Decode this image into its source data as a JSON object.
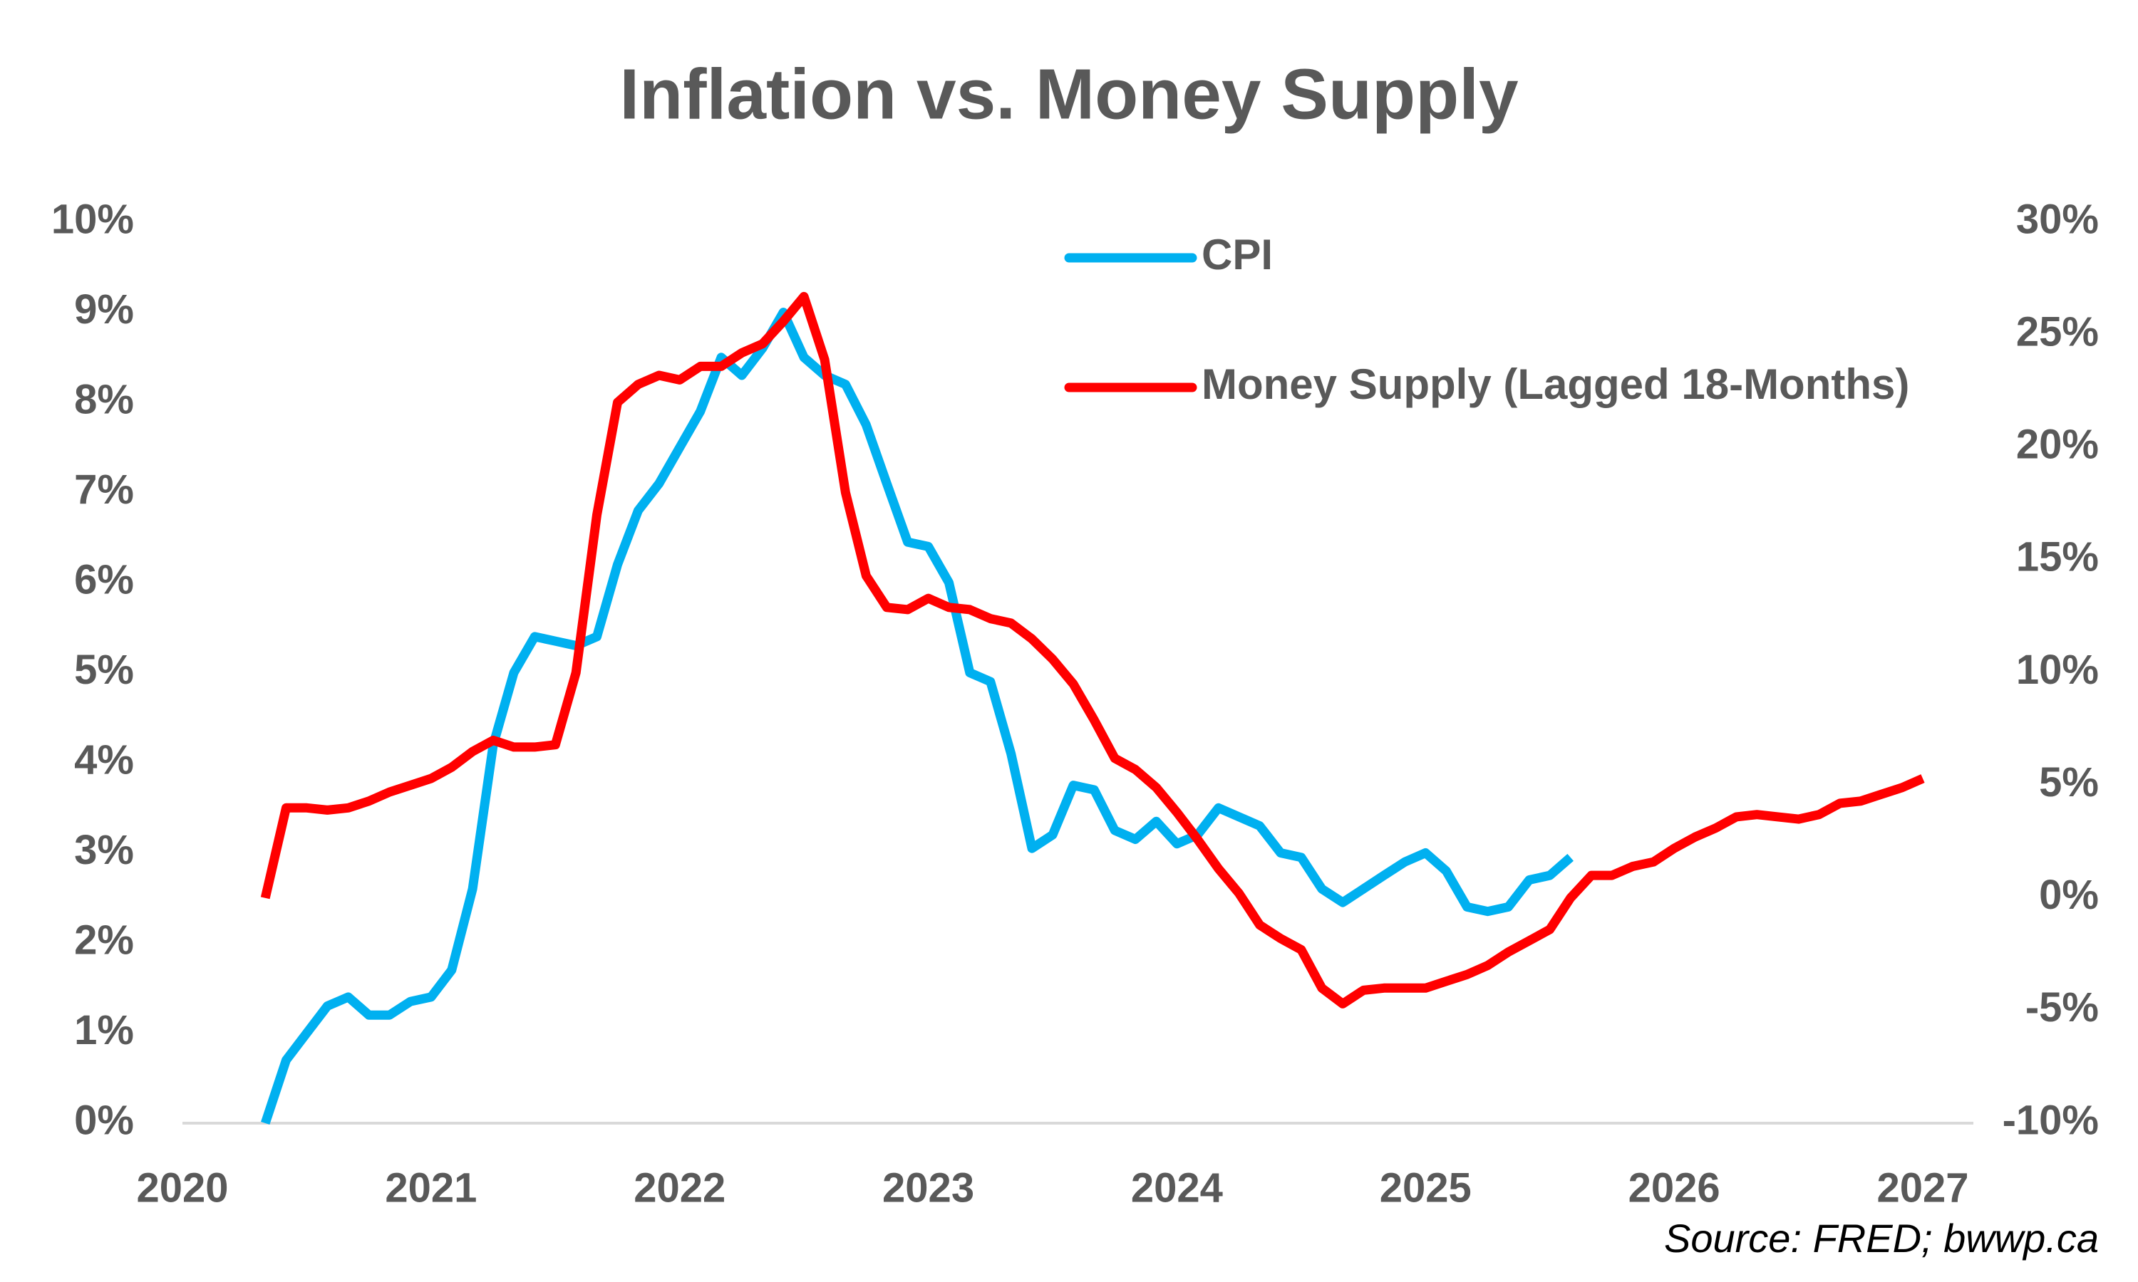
{
  "chart_data": {
    "type": "line",
    "title": "Inflation vs. Money Supply",
    "source": "Source: FRED; bwwp.ca",
    "legend": "top-right",
    "grid": false,
    "xlim": [
      2020,
      2027
    ],
    "xticks": [
      2020,
      2021,
      2022,
      2023,
      2024,
      2025,
      2026,
      2027
    ],
    "ylim": [
      0,
      10
    ],
    "yticks": [
      {
        "value": 0,
        "label": "0%"
      },
      {
        "value": 1,
        "label": "1%"
      },
      {
        "value": 2,
        "label": "2%"
      },
      {
        "value": 3,
        "label": "3%"
      },
      {
        "value": 4,
        "label": "4%"
      },
      {
        "value": 5,
        "label": "5%"
      },
      {
        "value": 6,
        "label": "6%"
      },
      {
        "value": 7,
        "label": "7%"
      },
      {
        "value": 8,
        "label": "8%"
      },
      {
        "value": 9,
        "label": "9%"
      },
      {
        "value": 10,
        "label": "10%"
      }
    ],
    "y2lim": [
      -10,
      30
    ],
    "y2ticks": [
      {
        "value": -10,
        "label": "-10%"
      },
      {
        "value": -5,
        "label": "-5%"
      },
      {
        "value": 0,
        "label": "0%"
      },
      {
        "value": 5,
        "label": "5%"
      },
      {
        "value": 10,
        "label": "10%"
      },
      {
        "value": 15,
        "label": "15%"
      },
      {
        "value": 20,
        "label": "20%"
      },
      {
        "value": 25,
        "label": "25%"
      },
      {
        "value": 30,
        "label": "30%"
      }
    ],
    "series": [
      {
        "name": "CPI",
        "color": "#00b0f0",
        "x": [
          2020.333,
          2020.417,
          2020.5,
          2020.583,
          2020.667,
          2020.75,
          2020.833,
          2020.917,
          2021,
          2021.083,
          2021.167,
          2021.25,
          2021.333,
          2021.417,
          2021.5,
          2021.583,
          2021.667,
          2021.75,
          2021.833,
          2021.917,
          2022,
          2022.083,
          2022.167,
          2022.25,
          2022.333,
          2022.417,
          2022.5,
          2022.583,
          2022.667,
          2022.75,
          2022.833,
          2022.917,
          2023,
          2023.083,
          2023.167,
          2023.25,
          2023.333,
          2023.417,
          2023.5,
          2023.583,
          2023.667,
          2023.75,
          2023.833,
          2023.917,
          2024,
          2024.083,
          2024.167,
          2024.25,
          2024.333,
          2024.417,
          2024.5,
          2024.583,
          2024.667,
          2024.75,
          2024.833,
          2024.917,
          2025,
          2025.083,
          2025.167,
          2025.25,
          2025.333,
          2025.417,
          2025.5,
          2025.583
        ],
        "values": [
          0,
          0.7,
          1.0,
          1.3,
          1.4,
          1.2,
          1.2,
          1.35,
          1.4,
          1.7,
          2.6,
          4.2,
          5.0,
          5.4,
          5.35,
          5.3,
          5.4,
          6.2,
          6.8,
          7.1,
          7.5,
          7.9,
          8.5,
          8.3,
          8.6,
          9.0,
          8.5,
          8.3,
          8.2,
          7.75,
          7.1,
          6.45,
          6.4,
          6.0,
          5.0,
          4.9,
          4.1,
          3.05,
          3.2,
          3.75,
          3.7,
          3.25,
          3.15,
          3.35,
          3.1,
          3.2,
          3.5,
          3.4,
          3.3,
          3.0,
          2.95,
          2.6,
          2.45,
          2.6,
          2.75,
          2.9,
          3.0,
          2.8,
          2.4,
          2.35,
          2.4,
          2.7,
          2.75,
          2.95
        ]
      },
      {
        "name": "Money Supply (Lagged 18-Months)",
        "color": "#ff0000",
        "axis": "y2",
        "x": [
          2020.333,
          2020.417,
          2020.5,
          2020.583,
          2020.667,
          2020.75,
          2020.833,
          2020.917,
          2021,
          2021.083,
          2021.167,
          2021.25,
          2021.333,
          2021.417,
          2021.5,
          2021.583,
          2021.667,
          2021.75,
          2021.833,
          2021.917,
          2022,
          2022.083,
          2022.167,
          2022.25,
          2022.333,
          2022.417,
          2022.5,
          2022.583,
          2022.667,
          2022.75,
          2022.833,
          2022.917,
          2023,
          2023.083,
          2023.167,
          2023.25,
          2023.333,
          2023.417,
          2023.5,
          2023.583,
          2023.667,
          2023.75,
          2023.833,
          2023.917,
          2024,
          2024.083,
          2024.167,
          2024.25,
          2024.333,
          2024.417,
          2024.5,
          2024.583,
          2024.667,
          2024.75,
          2024.833,
          2024.917,
          2025,
          2025.083,
          2025.167,
          2025.25,
          2025.333,
          2025.417,
          2025.5,
          2025.583,
          2025.667,
          2025.75,
          2025.833,
          2025.917,
          2026,
          2026.083,
          2026.167,
          2026.25,
          2026.333,
          2026.417,
          2026.5,
          2026.583,
          2026.667,
          2026.75,
          2026.833,
          2026.917,
          2027
        ],
        "values": [
          0,
          4.0,
          4.0,
          3.9,
          4.0,
          4.3,
          4.7,
          5.0,
          5.3,
          5.8,
          6.5,
          7.0,
          6.7,
          6.7,
          6.8,
          10.0,
          17.0,
          22.0,
          22.8,
          23.2,
          23.0,
          23.6,
          23.6,
          24.2,
          24.6,
          25.6,
          26.7,
          23.9,
          18.0,
          14.3,
          12.9,
          12.8,
          13.3,
          12.9,
          12.8,
          12.4,
          12.2,
          11.5,
          10.6,
          9.5,
          7.9,
          6.2,
          5.7,
          4.9,
          3.8,
          2.6,
          1.3,
          0.2,
          -1.2,
          -1.8,
          -2.3,
          -4.0,
          -4.7,
          -4.1,
          -4.0,
          -4.0,
          -4.0,
          -3.7,
          -3.4,
          -3.0,
          -2.4,
          -1.9,
          -1.4,
          0.0,
          1.0,
          1.0,
          1.4,
          1.6,
          2.2,
          2.7,
          3.1,
          3.6,
          3.7,
          3.6,
          3.5,
          3.7,
          4.2,
          4.3,
          4.6,
          4.9,
          5.3
        ]
      }
    ]
  }
}
